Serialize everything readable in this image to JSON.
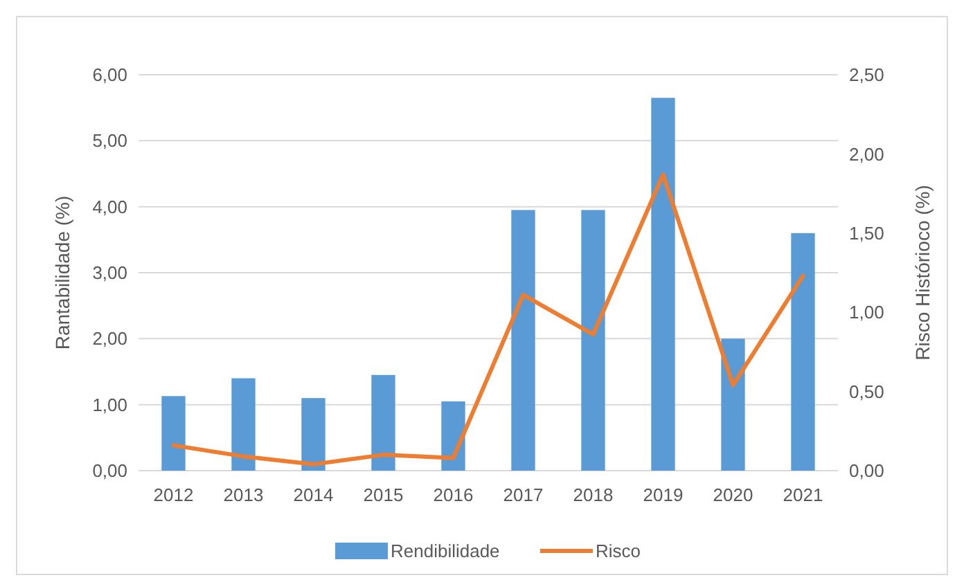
{
  "chart_data": {
    "type": "bar",
    "categories": [
      "2012",
      "2013",
      "2014",
      "2015",
      "2016",
      "2017",
      "2018",
      "2019",
      "2020",
      "2021"
    ],
    "ylabel": "Rantabilidade (%)",
    "y2label": "Risco Histórioco (%)",
    "ylim": [
      0,
      6
    ],
    "yticks": [
      {
        "value": 0,
        "label": "0,00"
      },
      {
        "value": 1,
        "label": "1,00"
      },
      {
        "value": 2,
        "label": "2,00"
      },
      {
        "value": 3,
        "label": "3,00"
      },
      {
        "value": 4,
        "label": "4,00"
      },
      {
        "value": 5,
        "label": "5,00"
      },
      {
        "value": 6,
        "label": "6,00"
      }
    ],
    "y2lim": [
      0,
      2.5
    ],
    "y2ticks": [
      {
        "value": 0,
        "label": "0,00"
      },
      {
        "value": 0.5,
        "label": "0,50"
      },
      {
        "value": 1,
        "label": "1,00"
      },
      {
        "value": 1.5,
        "label": "1,50"
      },
      {
        "value": 2,
        "label": "2,00"
      },
      {
        "value": 2.5,
        "label": "2,50"
      }
    ],
    "grid": "y",
    "legend": "bottom",
    "series": [
      {
        "name": "Rendibilidade",
        "color": "#5b9bd5",
        "values": [
          1.13,
          1.4,
          1.1,
          1.45,
          1.05,
          3.95,
          3.95,
          5.65,
          2.0,
          3.6
        ]
      },
      {
        "name": "Risco",
        "type": "line",
        "axis": "y2",
        "color": "#ed7d31",
        "values": [
          0.16,
          0.09,
          0.04,
          0.1,
          0.08,
          1.11,
          0.86,
          1.87,
          0.54,
          1.23
        ]
      }
    ]
  }
}
